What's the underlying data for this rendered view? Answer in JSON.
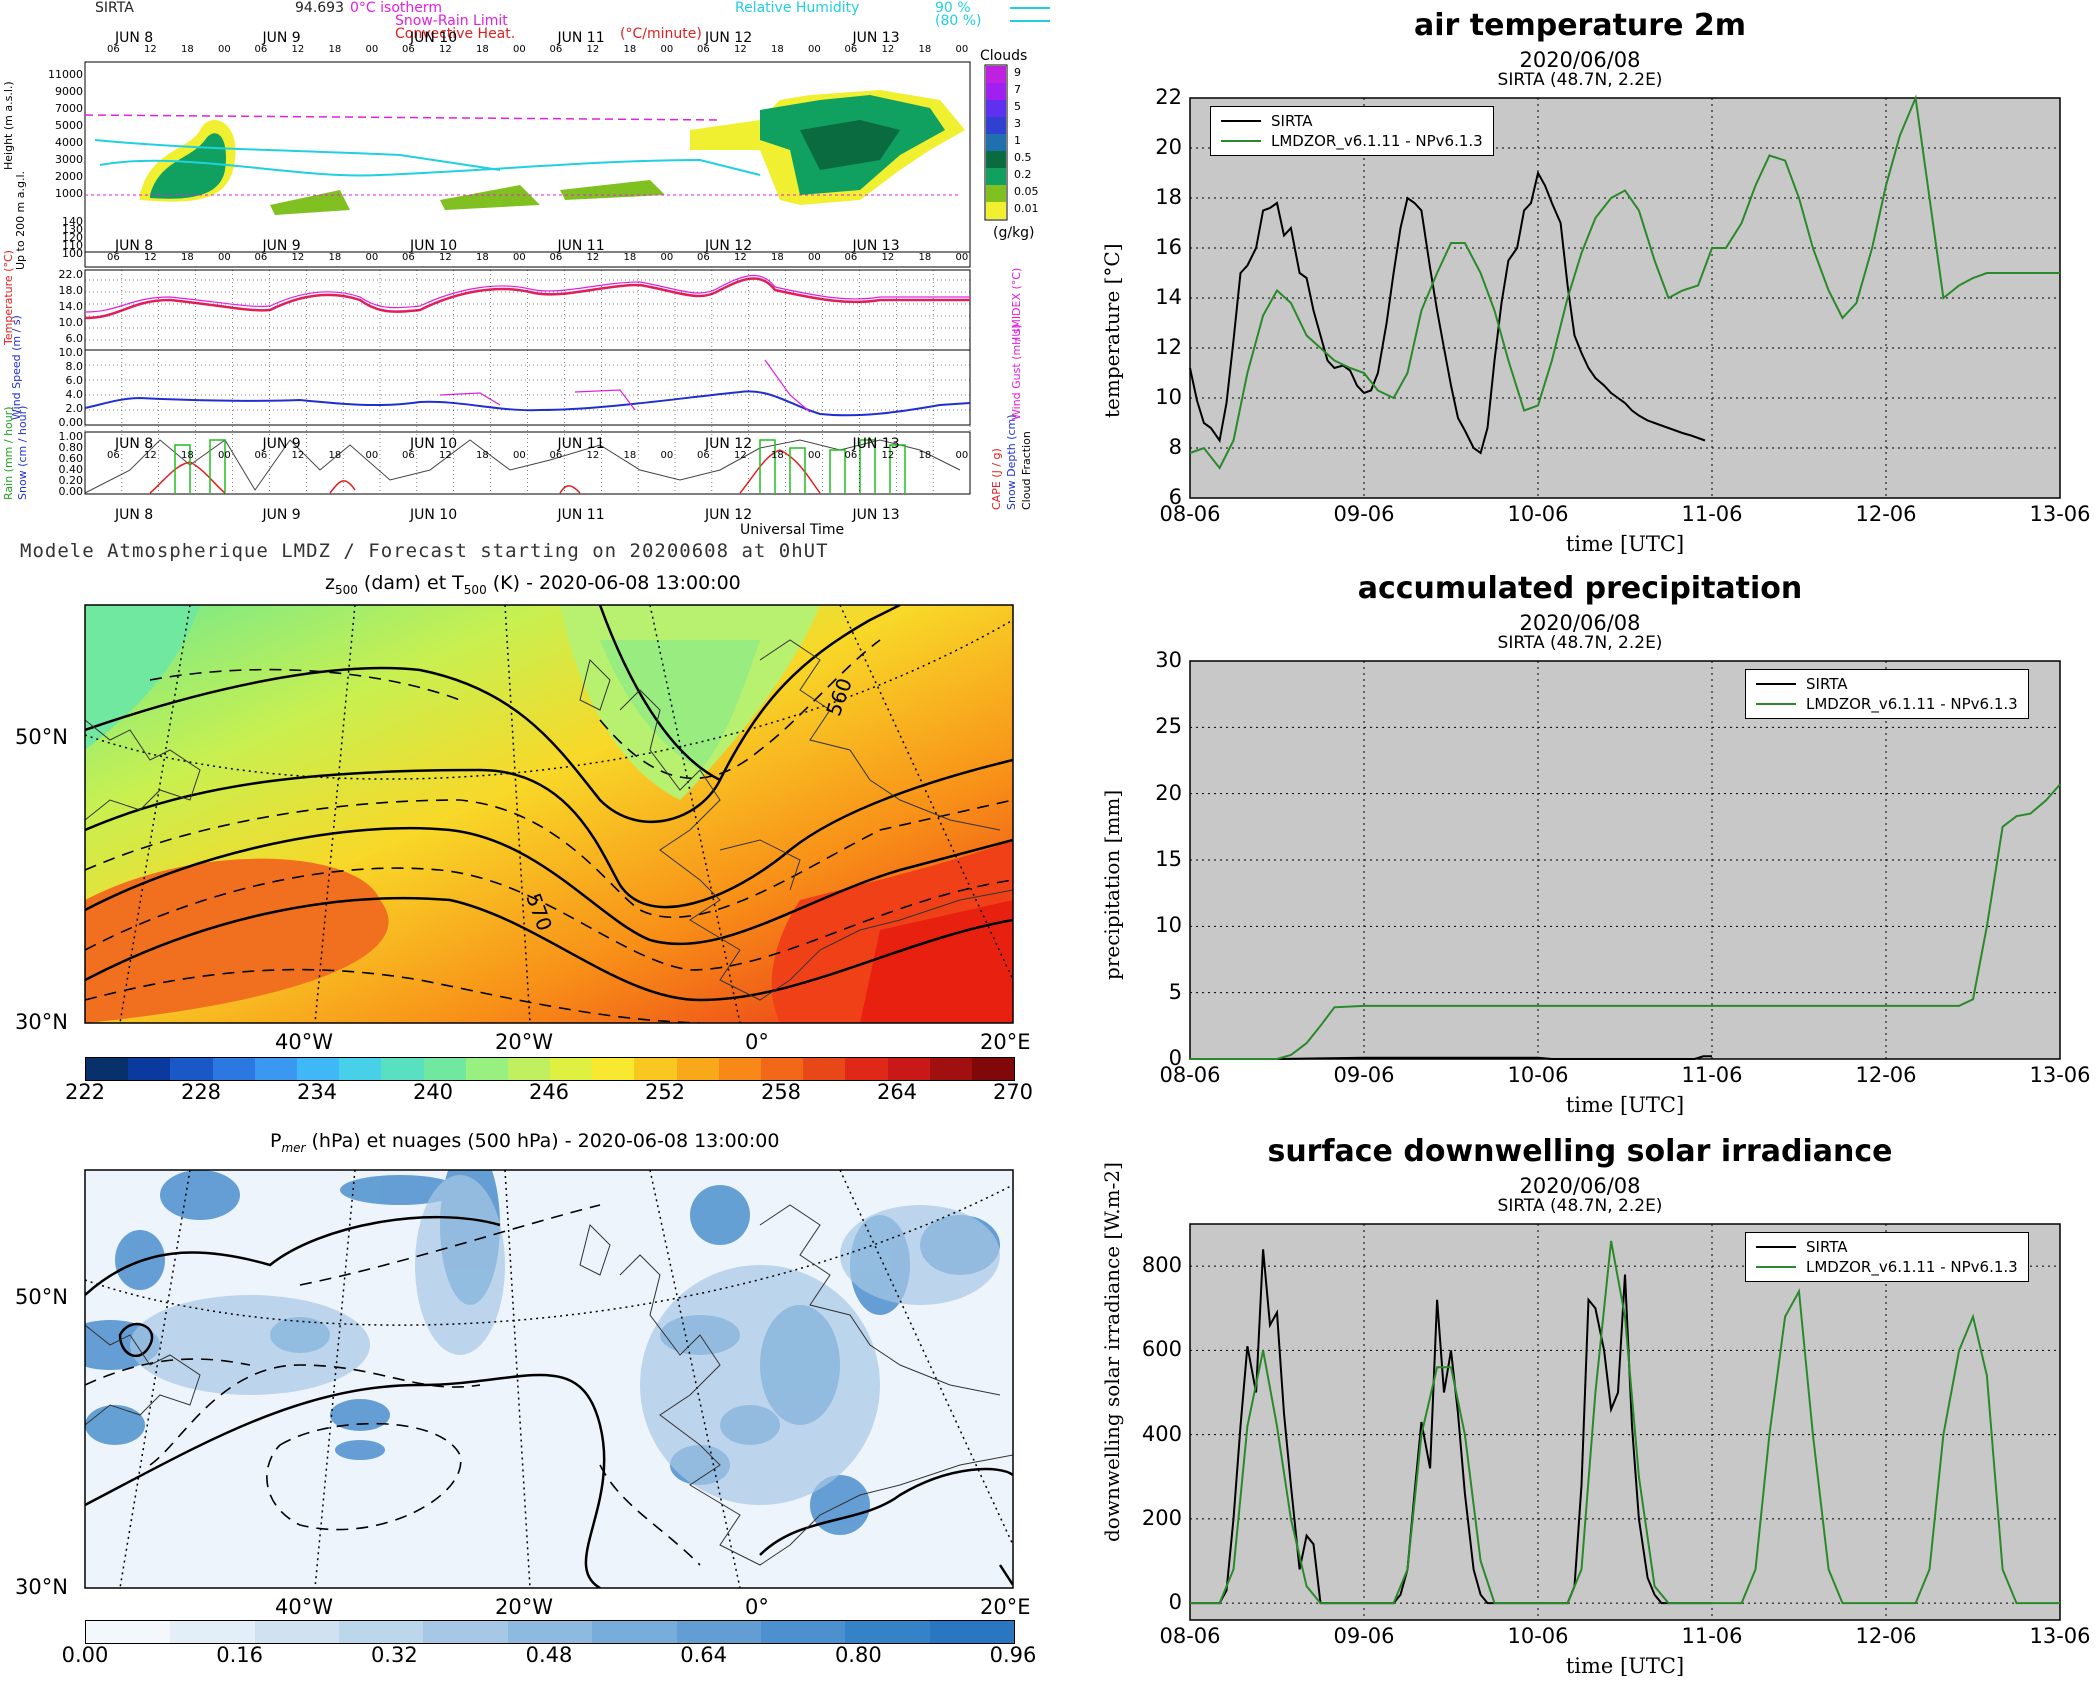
{
  "meteogram": {
    "station": "SIRTA",
    "station_value": "94.693",
    "legend": {
      "isotherm": "0°C isotherm",
      "snow_rain": "Snow-Rain Limit",
      "convective": "Convective Heat.",
      "convective_unit": "(°C/minute)",
      "rh": "Relative Humidity",
      "rh_90": "90 %",
      "rh_80": "(80 %)"
    },
    "day_labels": [
      "JUN 8",
      "JUN 9",
      "JUN 10",
      "JUN 11",
      "JUN 12",
      "JUN 13"
    ],
    "hour_labels": [
      "06",
      "12",
      "18",
      "00"
    ],
    "height_axis_label": "Height (m a.s.l.)",
    "height_ticks": [
      "11000",
      "9000",
      "7000",
      "5000",
      "4000",
      "3000",
      "2000",
      "1000"
    ],
    "low_axis_label": "Up to 200 m a.g.l.",
    "low_ticks": [
      "140",
      "130",
      "120",
      "110",
      "100"
    ],
    "clouds_title": "Clouds",
    "clouds_ticks": [
      "9",
      "7",
      "5",
      "3",
      "1",
      "0.5",
      "0.2",
      "0.05",
      "0.01"
    ],
    "clouds_unit": "(g/kg)",
    "temp_axis_label": "Temperature (°C)",
    "temp_ticks": [
      "22.0",
      "18.0",
      "14.0",
      "10.0",
      "6.0"
    ],
    "humidex_label": "HUMIDEX (°C)",
    "wind_axis_label": "Wind Speed (m / s)",
    "wind_ticks": [
      "10.0",
      "8.0",
      "6.0",
      "4.0",
      "2.0",
      "0.00"
    ],
    "gust_label": "Wind Gust (m / s)",
    "rain_ticks": [
      "1.00",
      "0.80",
      "0.60",
      "0.40",
      "0.20",
      "0.00"
    ],
    "rain_label": "Rain (mm / hour)",
    "snow_label": "Snow (cm / hour)",
    "cape_label": "CAPE (J / g)",
    "snowdepth_label": "Snow Depth (cm)",
    "cloudfrac_label": "Cloud Fraction",
    "x_axis_label": "Universal Time",
    "footer": "Modele Atmospherique LMDZ / Forecast starting on 20200608 at 0hUT"
  },
  "map1": {
    "title_pre": "z",
    "title_sub1": "500",
    "title_mid": " (dam) et T",
    "title_sub2": "500",
    "title_post": " (K) - 2020-06-08 13:00:00",
    "lat_labels": [
      "50°N",
      "30°N"
    ],
    "lon_labels": [
      "40°W",
      "20°W",
      "0°",
      "20°E"
    ],
    "contour_labels": [
      "560",
      "570"
    ],
    "colorbar_ticks": [
      "222",
      "228",
      "234",
      "240",
      "246",
      "252",
      "258",
      "264",
      "270"
    ],
    "colorbar_colors": [
      "#08306b",
      "#0a3a9e",
      "#1a58c8",
      "#2a78e0",
      "#3a98f0",
      "#40b8f8",
      "#48d0e8",
      "#58e0c0",
      "#70e8a0",
      "#98f080",
      "#c0f060",
      "#e0f040",
      "#f8e830",
      "#f8c820",
      "#f8a818",
      "#f88818",
      "#f06818",
      "#e84818",
      "#e02818",
      "#c81818",
      "#a01010",
      "#800808"
    ]
  },
  "map2": {
    "title_pre": "P",
    "title_sub": "mer",
    "title_post": " (hPa) et nuages (500 hPa) - 2020-06-08 13:00:00",
    "lat_labels": [
      "50°N",
      "30°N"
    ],
    "lon_labels": [
      "40°W",
      "20°W",
      "0°",
      "20°E"
    ],
    "colorbar_ticks": [
      "0.00",
      "0.16",
      "0.32",
      "0.48",
      "0.64",
      "0.80",
      "0.96"
    ],
    "colorbar_colors": [
      "#f4f8fc",
      "#e4eef8",
      "#d0e2f2",
      "#bcd6ec",
      "#a6c8e6",
      "#8ebae0",
      "#78acda",
      "#629ed4",
      "#4c90ce",
      "#3682c8",
      "#2a76c0"
    ]
  },
  "chart_data": [
    {
      "type": "line",
      "title": "air temperature 2m",
      "subtitle1": "2020/06/08",
      "subtitle2": "SIRTA (48.7N, 2.2E)",
      "xlabel": "time [UTC]",
      "ylabel": "temperature [°C]",
      "x_ticks": [
        "08-06",
        "09-06",
        "10-06",
        "11-06",
        "12-06",
        "13-06"
      ],
      "y_ticks": [
        "6",
        "8",
        "10",
        "12",
        "14",
        "16",
        "18",
        "20",
        "22"
      ],
      "ylim": [
        6,
        22
      ],
      "xlim": [
        0,
        5
      ],
      "grid": true,
      "legend_position": "top-left",
      "series": [
        {
          "name": "SIRTA",
          "color": "#000000",
          "x": [
            0,
            0.04,
            0.08,
            0.12,
            0.17,
            0.21,
            0.25,
            0.29,
            0.33,
            0.38,
            0.42,
            0.46,
            0.5,
            0.54,
            0.58,
            0.63,
            0.67,
            0.71,
            0.75,
            0.79,
            0.83,
            0.88,
            0.92,
            0.96,
            1.0,
            1.04,
            1.08,
            1.13,
            1.17,
            1.21,
            1.25,
            1.29,
            1.33,
            1.38,
            1.42,
            1.46,
            1.5,
            1.54,
            1.58,
            1.63,
            1.67,
            1.71,
            1.75,
            1.79,
            1.83,
            1.88,
            1.92,
            1.96,
            2.0,
            2.04,
            2.08,
            2.13,
            2.17,
            2.21,
            2.25,
            2.29,
            2.33,
            2.38,
            2.42,
            2.46,
            2.5,
            2.54,
            2.58,
            2.63,
            2.67,
            2.71,
            2.75,
            2.79,
            2.83,
            2.88,
            2.92,
            2.96
          ],
          "y": [
            11.2,
            9.9,
            9.0,
            8.8,
            8.3,
            9.8,
            12.3,
            15.0,
            15.3,
            16.0,
            17.5,
            17.6,
            17.8,
            16.5,
            16.8,
            15.0,
            14.8,
            13.5,
            12.5,
            11.5,
            11.2,
            11.3,
            11.1,
            10.5,
            10.2,
            10.3,
            11.0,
            13.0,
            15.0,
            16.8,
            18.0,
            17.8,
            17.5,
            15.2,
            13.5,
            12.0,
            10.5,
            9.2,
            8.7,
            8.0,
            7.8,
            8.8,
            11.5,
            13.8,
            15.5,
            16.0,
            17.5,
            17.8,
            19.0,
            18.5,
            17.8,
            17.0,
            14.5,
            12.5,
            11.8,
            11.2,
            10.8,
            10.5,
            10.2,
            10.0,
            9.8,
            9.5,
            9.3,
            9.1,
            9.0,
            8.9,
            8.8,
            8.7,
            8.6,
            8.5,
            8.4,
            8.3
          ]
        },
        {
          "name": "LMDZOR_v6.1.11 - NPv6.1.3",
          "color": "#2a8a2a",
          "x": [
            0,
            0.08,
            0.17,
            0.25,
            0.33,
            0.42,
            0.5,
            0.58,
            0.67,
            0.75,
            0.83,
            0.92,
            1.0,
            1.08,
            1.17,
            1.25,
            1.33,
            1.42,
            1.5,
            1.58,
            1.67,
            1.75,
            1.83,
            1.92,
            2.0,
            2.08,
            2.17,
            2.25,
            2.33,
            2.42,
            2.5,
            2.58,
            2.67,
            2.75,
            2.83,
            2.92,
            3.0,
            3.08,
            3.17,
            3.25,
            3.33,
            3.42,
            3.5,
            3.58,
            3.67,
            3.75,
            3.83,
            3.92,
            4.0,
            4.08,
            4.17,
            4.25,
            4.33,
            4.42,
            4.5,
            4.58,
            4.67,
            4.75,
            4.83,
            4.92,
            5.0
          ],
          "y": [
            7.8,
            8.0,
            7.2,
            8.3,
            11.0,
            13.3,
            14.3,
            13.8,
            12.5,
            12.0,
            11.5,
            11.2,
            11.0,
            10.3,
            10.0,
            11.0,
            13.5,
            15.0,
            16.2,
            16.2,
            15.0,
            13.5,
            11.5,
            9.5,
            9.7,
            11.5,
            14.0,
            15.8,
            17.2,
            18.0,
            18.3,
            17.5,
            15.5,
            14.0,
            14.3,
            14.5,
            16.0,
            16.0,
            17.0,
            18.5,
            19.7,
            19.5,
            18.0,
            16.0,
            14.3,
            13.2,
            13.8,
            16.0,
            18.5,
            20.5,
            22.0,
            18.0,
            14.0,
            14.5,
            14.8,
            15.0,
            15.0,
            15.0,
            15.0,
            15.0,
            15.0
          ]
        }
      ]
    },
    {
      "type": "line",
      "title": "accumulated precipitation",
      "subtitle1": "2020/06/08",
      "subtitle2": "SIRTA (48.7N, 2.2E)",
      "xlabel": "time [UTC]",
      "ylabel": "precipitation [mm]",
      "x_ticks": [
        "08-06",
        "09-06",
        "10-06",
        "11-06",
        "12-06",
        "13-06"
      ],
      "y_ticks": [
        "0",
        "5",
        "10",
        "15",
        "20",
        "25",
        "30"
      ],
      "ylim": [
        0,
        30
      ],
      "xlim": [
        0,
        5
      ],
      "grid": true,
      "legend_position": "top-right",
      "series": [
        {
          "name": "SIRTA",
          "color": "#000000",
          "x": [
            0,
            0.5,
            1.0,
            1.5,
            2.0,
            2.08,
            2.5,
            2.9,
            2.95,
            3.0
          ],
          "y": [
            0,
            0,
            0.1,
            0.1,
            0.1,
            0,
            0,
            0,
            0.2,
            0.2
          ]
        },
        {
          "name": "LMDZOR_v6.1.11 - NPv6.1.3",
          "color": "#2a8a2a",
          "x": [
            0,
            0.5,
            0.58,
            0.67,
            0.75,
            0.83,
            1.0,
            1.5,
            2.0,
            2.5,
            3.0,
            3.5,
            4.0,
            4.42,
            4.5,
            4.58,
            4.67,
            4.75,
            4.83,
            4.92,
            5.0
          ],
          "y": [
            0,
            0,
            0.3,
            1.2,
            2.5,
            3.9,
            4.0,
            4.0,
            4.0,
            4.0,
            4.0,
            4.0,
            4.0,
            4.0,
            4.5,
            10.0,
            17.5,
            18.3,
            18.5,
            19.5,
            20.7
          ]
        }
      ]
    },
    {
      "type": "line",
      "title": "surface downwelling solar irradiance",
      "subtitle1": "2020/06/08",
      "subtitle2": "SIRTA (48.7N, 2.2E)",
      "xlabel": "time [UTC]",
      "ylabel": "downwelling solar irradiance [W.m-2]",
      "x_ticks": [
        "08-06",
        "09-06",
        "10-06",
        "11-06",
        "12-06",
        "13-06"
      ],
      "y_ticks": [
        "0",
        "200",
        "400",
        "600",
        "800"
      ],
      "ylim": [
        -40,
        900
      ],
      "xlim": [
        0,
        5
      ],
      "grid": true,
      "legend_position": "top-right",
      "series": [
        {
          "name": "SIRTA",
          "color": "#000000",
          "x": [
            0,
            0.17,
            0.21,
            0.25,
            0.29,
            0.33,
            0.38,
            0.42,
            0.46,
            0.5,
            0.54,
            0.58,
            0.63,
            0.67,
            0.71,
            0.75,
            1.0,
            1.17,
            1.21,
            1.25,
            1.29,
            1.33,
            1.38,
            1.42,
            1.46,
            1.5,
            1.54,
            1.58,
            1.63,
            1.67,
            1.71,
            1.75,
            2.0,
            2.17,
            2.21,
            2.25,
            2.29,
            2.33,
            2.38,
            2.42,
            2.46,
            2.5,
            2.54,
            2.58,
            2.63,
            2.67,
            2.71,
            2.75,
            3.0
          ],
          "y": [
            0,
            0,
            30,
            200,
            420,
            610,
            500,
            840,
            660,
            690,
            450,
            280,
            80,
            160,
            140,
            0,
            0,
            0,
            20,
            80,
            260,
            430,
            320,
            720,
            500,
            600,
            450,
            260,
            80,
            20,
            0,
            0,
            0,
            0,
            40,
            280,
            720,
            700,
            600,
            460,
            500,
            780,
            420,
            200,
            60,
            20,
            0,
            0,
            0
          ]
        },
        {
          "name": "LMDZOR_v6.1.11 - NPv6.1.3",
          "color": "#2a8a2a",
          "x": [
            0,
            0.17,
            0.25,
            0.33,
            0.42,
            0.5,
            0.58,
            0.67,
            0.75,
            0.83,
            1.0,
            1.17,
            1.25,
            1.33,
            1.42,
            1.5,
            1.58,
            1.67,
            1.75,
            1.83,
            2.0,
            2.17,
            2.25,
            2.33,
            2.42,
            2.5,
            2.58,
            2.67,
            2.75,
            2.83,
            3.0,
            3.17,
            3.25,
            3.33,
            3.42,
            3.5,
            3.58,
            3.67,
            3.75,
            3.83,
            4.0,
            4.17,
            4.25,
            4.33,
            4.42,
            4.5,
            4.58,
            4.67,
            4.75,
            4.83,
            5.0
          ],
          "y": [
            0,
            0,
            80,
            420,
            600,
            420,
            200,
            40,
            0,
            0,
            0,
            0,
            80,
            400,
            560,
            560,
            400,
            100,
            0,
            0,
            0,
            0,
            80,
            500,
            860,
            680,
            300,
            40,
            0,
            0,
            0,
            0,
            80,
            400,
            680,
            740,
            400,
            80,
            0,
            0,
            0,
            0,
            80,
            400,
            600,
            680,
            540,
            80,
            0,
            0,
            0
          ]
        }
      ]
    }
  ]
}
